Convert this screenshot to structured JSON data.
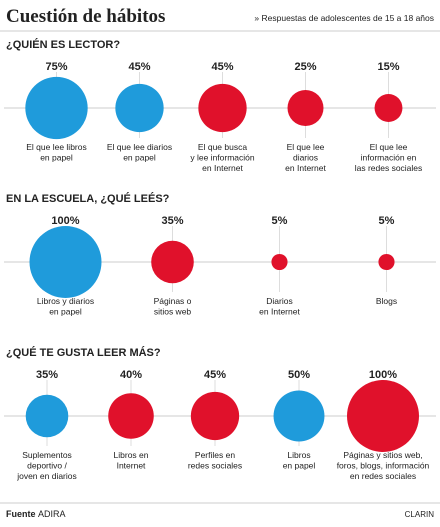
{
  "header": {
    "title": "Cuestión de hábitos",
    "subtitle": "» Respuestas de adolescentes de 15 a 18 años"
  },
  "chart_data": [
    {
      "type": "bubble",
      "title": "¿QUIÉN ES LECTOR?",
      "categories": [
        "El que lee libros\nen papel",
        "El que lee diarios\nen papel",
        "El que busca\ny lee información\nen Internet",
        "El que lee\ndiarios\nen Internet",
        "El que lee\ninformación en\nlas redes sociales"
      ],
      "values": [
        75,
        45,
        45,
        25,
        15
      ],
      "value_labels": [
        "75%",
        "45%",
        "45%",
        "25%",
        "15%"
      ],
      "colors": [
        "#1f9bdb",
        "#1f9bdb",
        "#e0112b",
        "#e0112b",
        "#e0112b"
      ]
    },
    {
      "type": "bubble",
      "title": "EN LA ESCUELA, ¿QUÉ LEÉS?",
      "categories": [
        "Libros y diarios\nen papel",
        "Páginas o\nsitios web",
        "Diarios\nen Internet",
        "Blogs"
      ],
      "values": [
        100,
        35,
        5,
        5
      ],
      "value_labels": [
        "100%",
        "35%",
        "5%",
        "5%"
      ],
      "colors": [
        "#1f9bdb",
        "#e0112b",
        "#e0112b",
        "#e0112b"
      ]
    },
    {
      "type": "bubble",
      "title": "¿QUÉ TE GUSTA LEER MÁS?",
      "categories": [
        "Suplementos\ndeportivo /\njoven en diarios",
        "Libros en\nInternet",
        "Perfiles en\nredes sociales",
        "Libros\nen papel",
        "Páginas y sitios web,\nforos, blogs, información\nen redes sociales"
      ],
      "values": [
        35,
        40,
        45,
        50,
        100
      ],
      "value_labels": [
        "35%",
        "40%",
        "45%",
        "50%",
        "100%"
      ],
      "colors": [
        "#1f9bdb",
        "#e0112b",
        "#e0112b",
        "#1f9bdb",
        "#e0112b"
      ]
    }
  ],
  "footer": {
    "source_label": "Fuente",
    "source": "ADIRA",
    "brand": "CLARIN"
  }
}
